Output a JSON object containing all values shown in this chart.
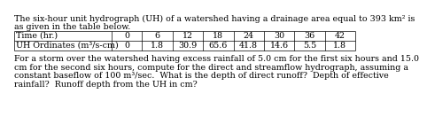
{
  "title_line1": "The six-hour unit hydrograph (UH) of a watershed having a drainage area equal to 393 km² is",
  "title_line2": "as given in the table below.",
  "table_col0_labels": [
    "Time (hr.)",
    "UH Ordinates (m³/s-cm)"
  ],
  "table_headers": [
    "0",
    "6",
    "12",
    "18",
    "24",
    "30",
    "36",
    "42"
  ],
  "table_row1_values": [
    "0",
    "1.8",
    "30.9",
    "65.6",
    "41.8",
    "14.6",
    "5.5",
    "1.8"
  ],
  "body_line1": "For a storm over the watershed having excess rainfall of 5.0 cm for the first six hours and 15.0",
  "body_line2": "cm for the second six hours, compute for the direct and streamflow hydrograph, assuming a",
  "body_line3": "constant baseflow of 100 m³/sec.  What is the depth of direct runoff?  Depth of effective",
  "body_line4": "rainfall?  Runoff depth from the UH in cm?",
  "bg_color": "#ffffff",
  "text_color": "#000000",
  "font_size": 6.8,
  "table_font_size": 6.8
}
